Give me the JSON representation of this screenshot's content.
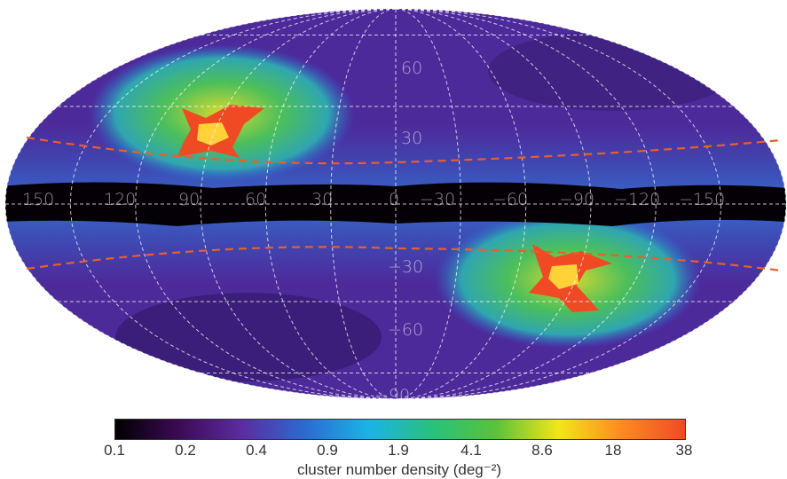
{
  "map": {
    "projection": "Mollweide (all-sky)",
    "longitude_labels": [
      "150",
      "120",
      "90",
      "60",
      "30",
      "0",
      "−30",
      "−60",
      "−90",
      "−120",
      "−150"
    ],
    "latitude_labels": [
      "60",
      "30",
      "−30",
      "−60",
      "−90"
    ],
    "graticule_color": "#ffffff",
    "dashed_curve_color": "#e8602a",
    "galactic_plane_band_color": "#050005"
  },
  "colorbar": {
    "tick_labels": [
      "0.1",
      "0.2",
      "0.4",
      "0.9",
      "1.9",
      "4.1",
      "8.6",
      "18",
      "38"
    ],
    "label": "cluster number density (deg⁻²)",
    "colors": [
      "#000000",
      "#3c0a54",
      "#5a2da0",
      "#2c6ad2",
      "#19b4e6",
      "#26c27d",
      "#58c23a",
      "#f2e619",
      "#ff8a1e",
      "#f04a24"
    ]
  }
}
